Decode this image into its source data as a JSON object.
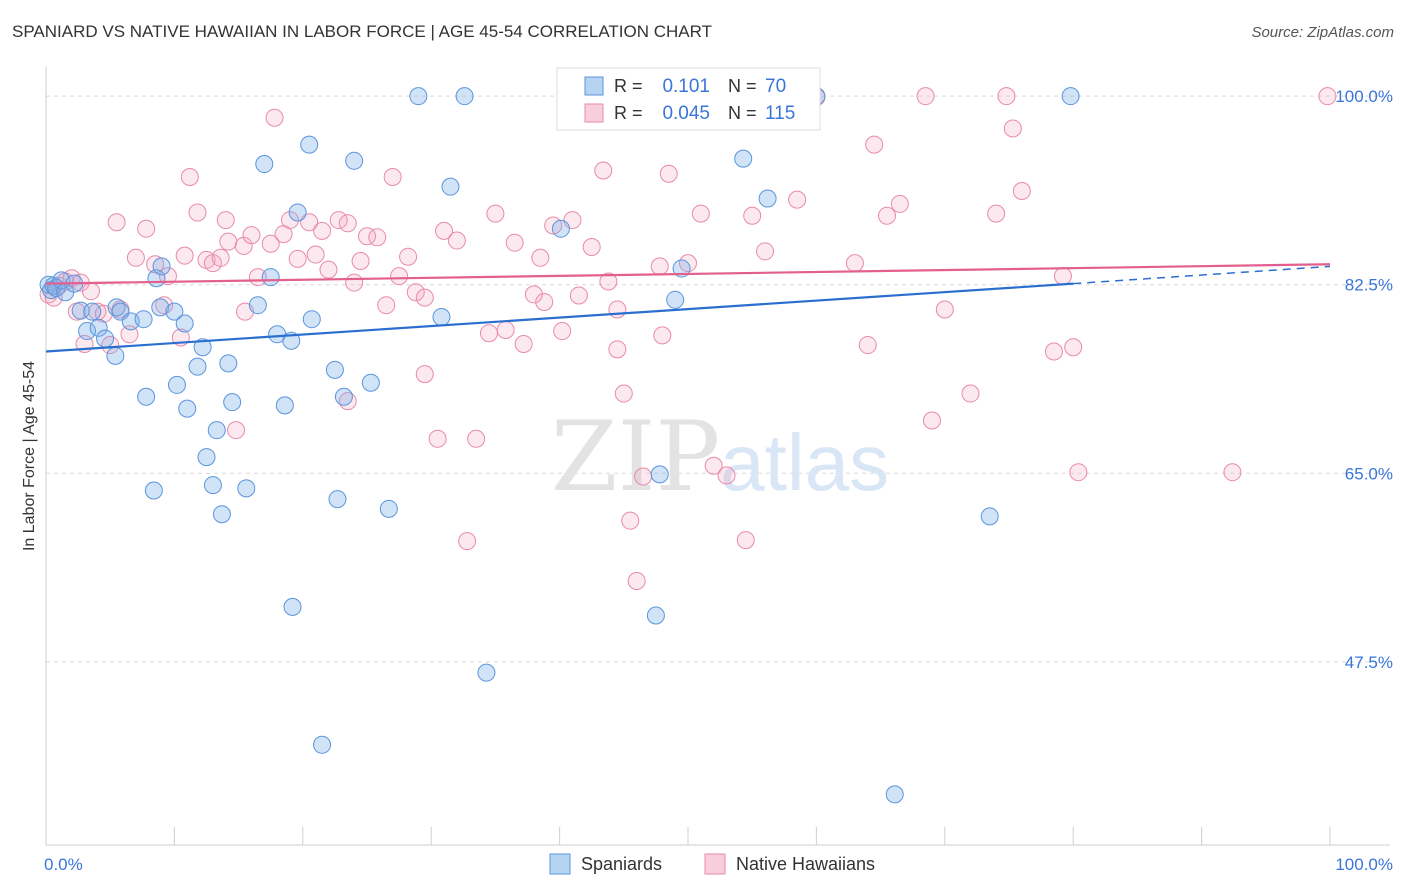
{
  "chart_data": {
    "type": "scatter",
    "title": "SPANIARD VS NATIVE HAWAIIAN IN LABOR FORCE | AGE 45-54 CORRELATION CHART",
    "source": "Source: ZipAtlas.com",
    "ylabel": "In Labor Force | Age 45-54",
    "xlabel": "",
    "x_tick_labels": [
      "0.0%",
      "100.0%"
    ],
    "y_tick_labels": [
      "100.0%",
      "82.5%",
      "65.0%",
      "47.5%"
    ],
    "y_tick_values": [
      100.0,
      82.5,
      65.0,
      47.5
    ],
    "xlim": [
      0,
      100
    ],
    "ylim": [
      30.5,
      101.5
    ],
    "grid": true,
    "legend_position": "bottom",
    "watermark": "ZIPatlas",
    "colors": {
      "spaniards": "#7aaee8",
      "native_hawaiians": "#f2a5bf",
      "spaniards_line": "#2a6fd0",
      "native_hawaiians_line": "#e35f8e",
      "accent_text": "#3a76d8"
    },
    "stats": [
      {
        "r_label": "R =",
        "r_value": "0.101",
        "n_label": "N =",
        "n_value": "70"
      },
      {
        "r_label": "R =",
        "r_value": "0.045",
        "n_label": "N =",
        "n_value": "115"
      }
    ],
    "series": [
      {
        "name": "Spaniards",
        "trend": {
          "x0": 0,
          "y0": 76.3,
          "x1": 80,
          "y1": 82.6,
          "dash_to_x": 100,
          "dash_to_y": 84.2
        },
        "points": [
          [
            0.2,
            82.5
          ],
          [
            0.4,
            82.0
          ],
          [
            0.6,
            82.4
          ],
          [
            0.8,
            82.2
          ],
          [
            1.2,
            82.9
          ],
          [
            1.5,
            81.8
          ],
          [
            2.2,
            82.6
          ],
          [
            2.7,
            80.1
          ],
          [
            3.2,
            78.2
          ],
          [
            3.6,
            80.0
          ],
          [
            4.1,
            78.5
          ],
          [
            4.6,
            77.5
          ],
          [
            5.5,
            80.4
          ],
          [
            5.4,
            75.9
          ],
          [
            5.8,
            80.0
          ],
          [
            6.6,
            79.1
          ],
          [
            7.6,
            79.3
          ],
          [
            7.8,
            72.1
          ],
          [
            8.4,
            63.4
          ],
          [
            8.6,
            83.1
          ],
          [
            8.9,
            80.4
          ],
          [
            9.0,
            84.2
          ],
          [
            10.0,
            80.0
          ],
          [
            10.2,
            73.2
          ],
          [
            10.8,
            78.9
          ],
          [
            11.0,
            71.0
          ],
          [
            11.8,
            74.9
          ],
          [
            12.2,
            76.7
          ],
          [
            12.5,
            66.5
          ],
          [
            13.0,
            63.9
          ],
          [
            13.3,
            69.0
          ],
          [
            13.7,
            61.2
          ],
          [
            14.2,
            75.2
          ],
          [
            14.5,
            71.6
          ],
          [
            15.6,
            63.6
          ],
          [
            16.5,
            80.6
          ],
          [
            17.0,
            93.7
          ],
          [
            17.5,
            83.2
          ],
          [
            18.0,
            77.9
          ],
          [
            18.6,
            71.3
          ],
          [
            19.1,
            77.3
          ],
          [
            19.2,
            52.6
          ],
          [
            19.6,
            89.2
          ],
          [
            20.5,
            95.5
          ],
          [
            20.7,
            79.3
          ],
          [
            21.5,
            39.8
          ],
          [
            22.5,
            74.6
          ],
          [
            22.7,
            62.6
          ],
          [
            23.2,
            72.1
          ],
          [
            24.0,
            94.0
          ],
          [
            25.3,
            73.4
          ],
          [
            26.7,
            61.7
          ],
          [
            29.0,
            100.0
          ],
          [
            30.8,
            79.5
          ],
          [
            31.5,
            91.6
          ],
          [
            32.6,
            100.0
          ],
          [
            34.3,
            46.5
          ],
          [
            40.1,
            87.7
          ],
          [
            47.5,
            51.8
          ],
          [
            47.8,
            64.9
          ],
          [
            49.0,
            81.1
          ],
          [
            49.5,
            84.0
          ],
          [
            50.4,
            100.0
          ],
          [
            52.4,
            100.0
          ],
          [
            54.3,
            94.2
          ],
          [
            56.2,
            90.5
          ],
          [
            60.0,
            100.0
          ],
          [
            66.1,
            35.2
          ],
          [
            73.5,
            61.0
          ],
          [
            79.8,
            100.0
          ]
        ]
      },
      {
        "name": "Native Hawaiians",
        "trend": {
          "x0": 0,
          "y0": 82.6,
          "x1": 100,
          "y1": 84.4
        },
        "points": [
          [
            0.2,
            81.6
          ],
          [
            0.6,
            81.3
          ],
          [
            1.0,
            82.4
          ],
          [
            1.5,
            82.8
          ],
          [
            2.0,
            83.1
          ],
          [
            2.4,
            80.0
          ],
          [
            2.7,
            82.7
          ],
          [
            3.0,
            77.0
          ],
          [
            3.5,
            81.9
          ],
          [
            4.0,
            80.0
          ],
          [
            4.5,
            79.8
          ],
          [
            5.0,
            76.9
          ],
          [
            5.8,
            80.2
          ],
          [
            5.5,
            88.3
          ],
          [
            6.5,
            77.9
          ],
          [
            7.0,
            85.0
          ],
          [
            7.8,
            87.7
          ],
          [
            8.5,
            84.4
          ],
          [
            9.2,
            80.6
          ],
          [
            9.5,
            83.3
          ],
          [
            10.5,
            77.6
          ],
          [
            10.8,
            85.2
          ],
          [
            11.2,
            92.5
          ],
          [
            11.8,
            89.2
          ],
          [
            12.5,
            84.8
          ],
          [
            13.0,
            84.5
          ],
          [
            13.6,
            85.0
          ],
          [
            14.0,
            88.5
          ],
          [
            14.2,
            86.5
          ],
          [
            14.8,
            69.0
          ],
          [
            15.4,
            86.1
          ],
          [
            15.5,
            80.0
          ],
          [
            16.0,
            87.1
          ],
          [
            16.5,
            83.2
          ],
          [
            17.5,
            86.3
          ],
          [
            17.8,
            98.0
          ],
          [
            18.5,
            87.2
          ],
          [
            19.0,
            88.5
          ],
          [
            19.6,
            84.9
          ],
          [
            20.5,
            88.3
          ],
          [
            21.0,
            85.3
          ],
          [
            21.5,
            87.5
          ],
          [
            22.0,
            83.9
          ],
          [
            22.8,
            88.5
          ],
          [
            23.5,
            88.2
          ],
          [
            23.5,
            71.7
          ],
          [
            24.0,
            82.7
          ],
          [
            24.5,
            84.7
          ],
          [
            25.0,
            87.0
          ],
          [
            25.8,
            86.9
          ],
          [
            26.5,
            80.6
          ],
          [
            27.0,
            92.5
          ],
          [
            27.5,
            83.3
          ],
          [
            28.2,
            85.1
          ],
          [
            28.8,
            81.8
          ],
          [
            29.5,
            81.3
          ],
          [
            29.5,
            74.2
          ],
          [
            30.5,
            68.2
          ],
          [
            31.0,
            87.5
          ],
          [
            32.0,
            86.6
          ],
          [
            32.8,
            58.7
          ],
          [
            33.5,
            68.2
          ],
          [
            34.5,
            78.0
          ],
          [
            35.0,
            89.1
          ],
          [
            35.8,
            78.3
          ],
          [
            36.5,
            86.4
          ],
          [
            37.2,
            77.0
          ],
          [
            38.0,
            81.6
          ],
          [
            38.5,
            85.0
          ],
          [
            38.8,
            80.9
          ],
          [
            39.5,
            88.0
          ],
          [
            40.2,
            78.2
          ],
          [
            41.0,
            88.5
          ],
          [
            41.5,
            81.5
          ],
          [
            42.5,
            86.0
          ],
          [
            43.4,
            93.1
          ],
          [
            43.8,
            82.8
          ],
          [
            44.5,
            76.5
          ],
          [
            44.5,
            80.2
          ],
          [
            45.0,
            72.4
          ],
          [
            45.5,
            60.6
          ],
          [
            46.0,
            55.0
          ],
          [
            46.5,
            64.7
          ],
          [
            47.8,
            84.2
          ],
          [
            48.0,
            77.8
          ],
          [
            48.5,
            92.8
          ],
          [
            50.0,
            84.5
          ],
          [
            51.0,
            89.1
          ],
          [
            52.0,
            65.7
          ],
          [
            53.0,
            64.8
          ],
          [
            54.5,
            58.8
          ],
          [
            55.0,
            88.9
          ],
          [
            56.0,
            85.6
          ],
          [
            57.3,
            100.0
          ],
          [
            58.5,
            90.4
          ],
          [
            60.0,
            99.9
          ],
          [
            63.0,
            84.5
          ],
          [
            64.0,
            76.9
          ],
          [
            64.5,
            95.5
          ],
          [
            65.5,
            88.9
          ],
          [
            66.5,
            90.0
          ],
          [
            68.5,
            100.0
          ],
          [
            69.0,
            69.9
          ],
          [
            70.0,
            80.2
          ],
          [
            72.0,
            72.4
          ],
          [
            74.0,
            89.1
          ],
          [
            74.8,
            100.0
          ],
          [
            75.3,
            97.0
          ],
          [
            76.0,
            91.2
          ],
          [
            78.5,
            76.3
          ],
          [
            79.2,
            83.3
          ],
          [
            80.0,
            76.7
          ],
          [
            80.4,
            65.1
          ],
          [
            92.4,
            65.1
          ],
          [
            99.8,
            100.0
          ]
        ]
      }
    ]
  }
}
